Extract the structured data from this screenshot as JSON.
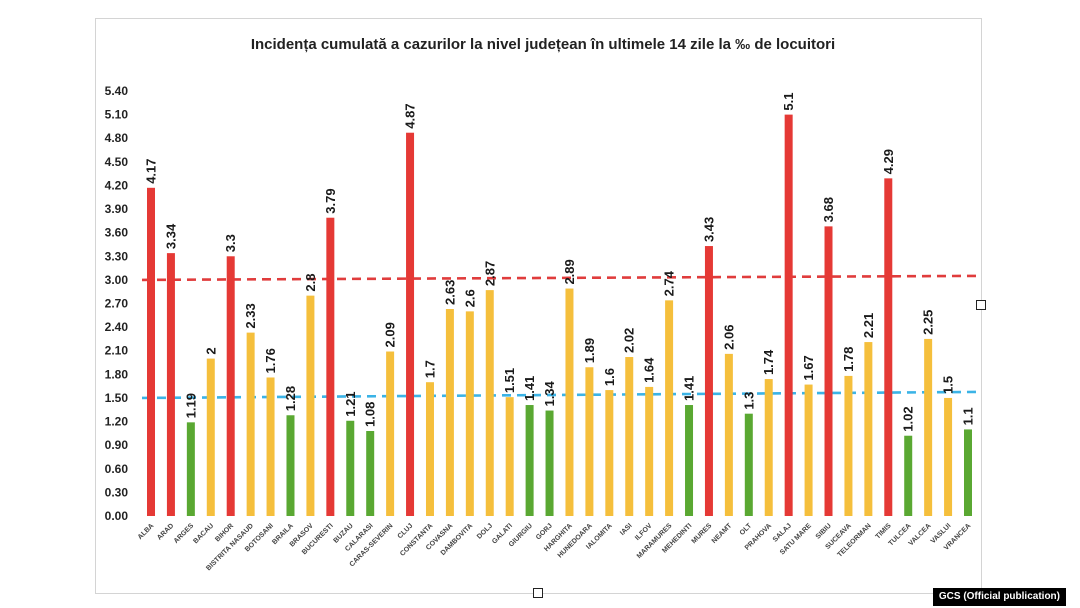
{
  "credit": "GCS (Official publication)",
  "chart_data": {
    "type": "bar",
    "title": "Incidența cumulată a cazurilor la nivel județean în ultimele 14 zile la ‰ de locuitori",
    "xlabel": "",
    "ylabel": "",
    "ylim": [
      0,
      5.4
    ],
    "yticks": [
      "0.00",
      "0.30",
      "0.60",
      "0.90",
      "1.20",
      "1.50",
      "1.80",
      "2.10",
      "2.40",
      "2.70",
      "3.00",
      "3.30",
      "3.60",
      "3.90",
      "4.20",
      "4.50",
      "4.80",
      "5.10",
      "5.40"
    ],
    "thresholds": [
      {
        "value": 3.0,
        "color": "#e03c3c",
        "style": "dashed"
      },
      {
        "value": 1.5,
        "color": "#3bb3e6",
        "style": "dashed"
      }
    ],
    "colors": {
      "red": "#e53935",
      "yellow": "#f5bf3c",
      "green": "#5aa832"
    },
    "categories": [
      "ALBA",
      "ARAD",
      "ARGES",
      "BACAU",
      "BIHOR",
      "BISTRITA NASAUD",
      "BOTOSANI",
      "BRAILA",
      "BRASOV",
      "BUCURESTI",
      "BUZAU",
      "CALARASI",
      "CARAS-SEVERIN",
      "CLUJ",
      "CONSTANTA",
      "COVASNA",
      "DAMBOVITA",
      "DOLJ",
      "GALATI",
      "GIURGIU",
      "GORJ",
      "HARGHITA",
      "HUNEDOARA",
      "IALOMITA",
      "IASI",
      "ILFOV",
      "MARAMURES",
      "MEHEDINTI",
      "MURES",
      "NEAMT",
      "OLT",
      "PRAHOVA",
      "SALAJ",
      "SATU MARE",
      "SIBIU",
      "SUCEAVA",
      "TELEORMAN",
      "TIMIS",
      "TULCEA",
      "VALCEA",
      "VASLUI",
      "VRANCEA"
    ],
    "values": [
      4.17,
      3.34,
      1.19,
      2,
      3.3,
      2.33,
      1.76,
      1.28,
      2.8,
      3.79,
      1.21,
      1.08,
      2.09,
      4.87,
      1.7,
      2.63,
      2.6,
      2.87,
      1.51,
      1.41,
      1.34,
      2.89,
      1.89,
      1.6,
      2.02,
      1.64,
      2.74,
      1.41,
      3.43,
      2.06,
      1.3,
      1.74,
      5.1,
      1.67,
      3.68,
      1.78,
      2.21,
      4.29,
      1.02,
      2.25,
      1.5,
      1.1
    ],
    "labels": [
      "4.17",
      "3.34",
      "1.19",
      "2",
      "3.3",
      "2.33",
      "1.76",
      "1.28",
      "2.8",
      "3.79",
      "1.21",
      "1.08",
      "2.09",
      "4.87",
      "1.7",
      "2.63",
      "2.6",
      "2.87",
      "1.51",
      "1.41",
      "1.34",
      "2.89",
      "1.89",
      "1.6",
      "2.02",
      "1.64",
      "2.74",
      "1.41",
      "3.43",
      "2.06",
      "1.3",
      "1.74",
      "5.1",
      "1.67",
      "3.68",
      "1.78",
      "2.21",
      "4.29",
      "1.02",
      "2.25",
      "1.5",
      "1.1"
    ],
    "bar_colors": [
      "red",
      "red",
      "green",
      "yellow",
      "red",
      "yellow",
      "yellow",
      "green",
      "yellow",
      "red",
      "green",
      "green",
      "yellow",
      "red",
      "yellow",
      "yellow",
      "yellow",
      "yellow",
      "yellow",
      "green",
      "green",
      "yellow",
      "yellow",
      "yellow",
      "yellow",
      "yellow",
      "yellow",
      "green",
      "red",
      "yellow",
      "green",
      "yellow",
      "red",
      "yellow",
      "red",
      "yellow",
      "yellow",
      "red",
      "green",
      "yellow",
      "yellow",
      "green"
    ]
  }
}
